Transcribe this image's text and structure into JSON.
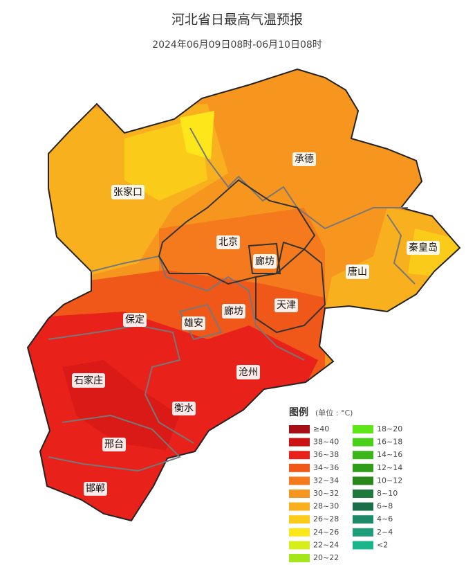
{
  "title": "河北省日最高气温预报",
  "subtitle": "2024年06月09日08时-06月10日08时",
  "cities": [
    "承德",
    "张家口",
    "北京",
    "廊坊",
    "秦皇岛",
    "唐山",
    "天津",
    "廊坊",
    "雄安",
    "保定",
    "沧州",
    "石家庄",
    "衡水",
    "邢台",
    "邯郸"
  ],
  "legend": {
    "title": "图例",
    "unit": "(单位 : °C)",
    "items": [
      {
        "label": "≥40",
        "color": "#a50f15"
      },
      {
        "label": "38~40",
        "color": "#cc1212"
      },
      {
        "label": "36~38",
        "color": "#e8221a"
      },
      {
        "label": "34~36",
        "color": "#f0581a"
      },
      {
        "label": "32~34",
        "color": "#f57a1e"
      },
      {
        "label": "30~32",
        "color": "#f7961f"
      },
      {
        "label": "28~30",
        "color": "#f9b01f"
      },
      {
        "label": "26~28",
        "color": "#fbcb1a"
      },
      {
        "label": "24~26",
        "color": "#fde71a"
      },
      {
        "label": "22~24",
        "color": "#d6ee1a"
      },
      {
        "label": "20~22",
        "color": "#a3e61a"
      },
      {
        "label": "18~20",
        "color": "#5fe61a"
      },
      {
        "label": "16~18",
        "color": "#4cd11a"
      },
      {
        "label": "14~16",
        "color": "#3bb61a"
      },
      {
        "label": "12~14",
        "color": "#2f9c1a"
      },
      {
        "label": "10~12",
        "color": "#2a871a"
      },
      {
        "label": "8~10",
        "color": "#1e7a3a"
      },
      {
        "label": "6~8",
        "color": "#1a6e4a"
      },
      {
        "label": "4~6",
        "color": "#1e8a6a"
      },
      {
        "label": "2~4",
        "color": "#1e9e7a"
      },
      {
        "label": "<2",
        "color": "#1ab58a"
      }
    ]
  }
}
